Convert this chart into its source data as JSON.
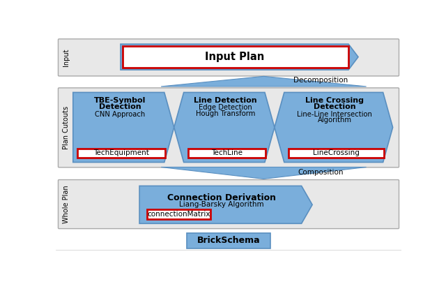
{
  "blue": "#7aaedb",
  "blue_edge": "#5a8fc0",
  "red": "#cc0000",
  "white": "#ffffff",
  "panel_gray": "#e8e8e8",
  "panel_edge": "#aaaaaa",
  "text_black": "#000000",
  "decomposition_label": "Decomposition",
  "composition_label": "Composition",
  "input_plan_label": "Input Plan",
  "brick_schema_label": "BrickSchema",
  "row_labels": [
    "Input",
    "Plan Cutouts",
    "Whole Plan"
  ],
  "cutout_boxes": [
    {
      "bold": "TBE-Symbol\nDetection",
      "sub": "CNN Approach",
      "tag": "TechEquipment"
    },
    {
      "bold": "Line Detection",
      "sub": "Edge Detection\nHough Transform",
      "tag": "TechLine"
    },
    {
      "bold": "Line Crossing\nDetection",
      "sub": "Line-Line Intersection\nAlgorithm",
      "tag": "LineCrossing"
    }
  ],
  "connection_bold": "Connection Derivation",
  "connection_sub": "Liang-Barsky Algorithm",
  "connection_tag": "connectionMatrix"
}
